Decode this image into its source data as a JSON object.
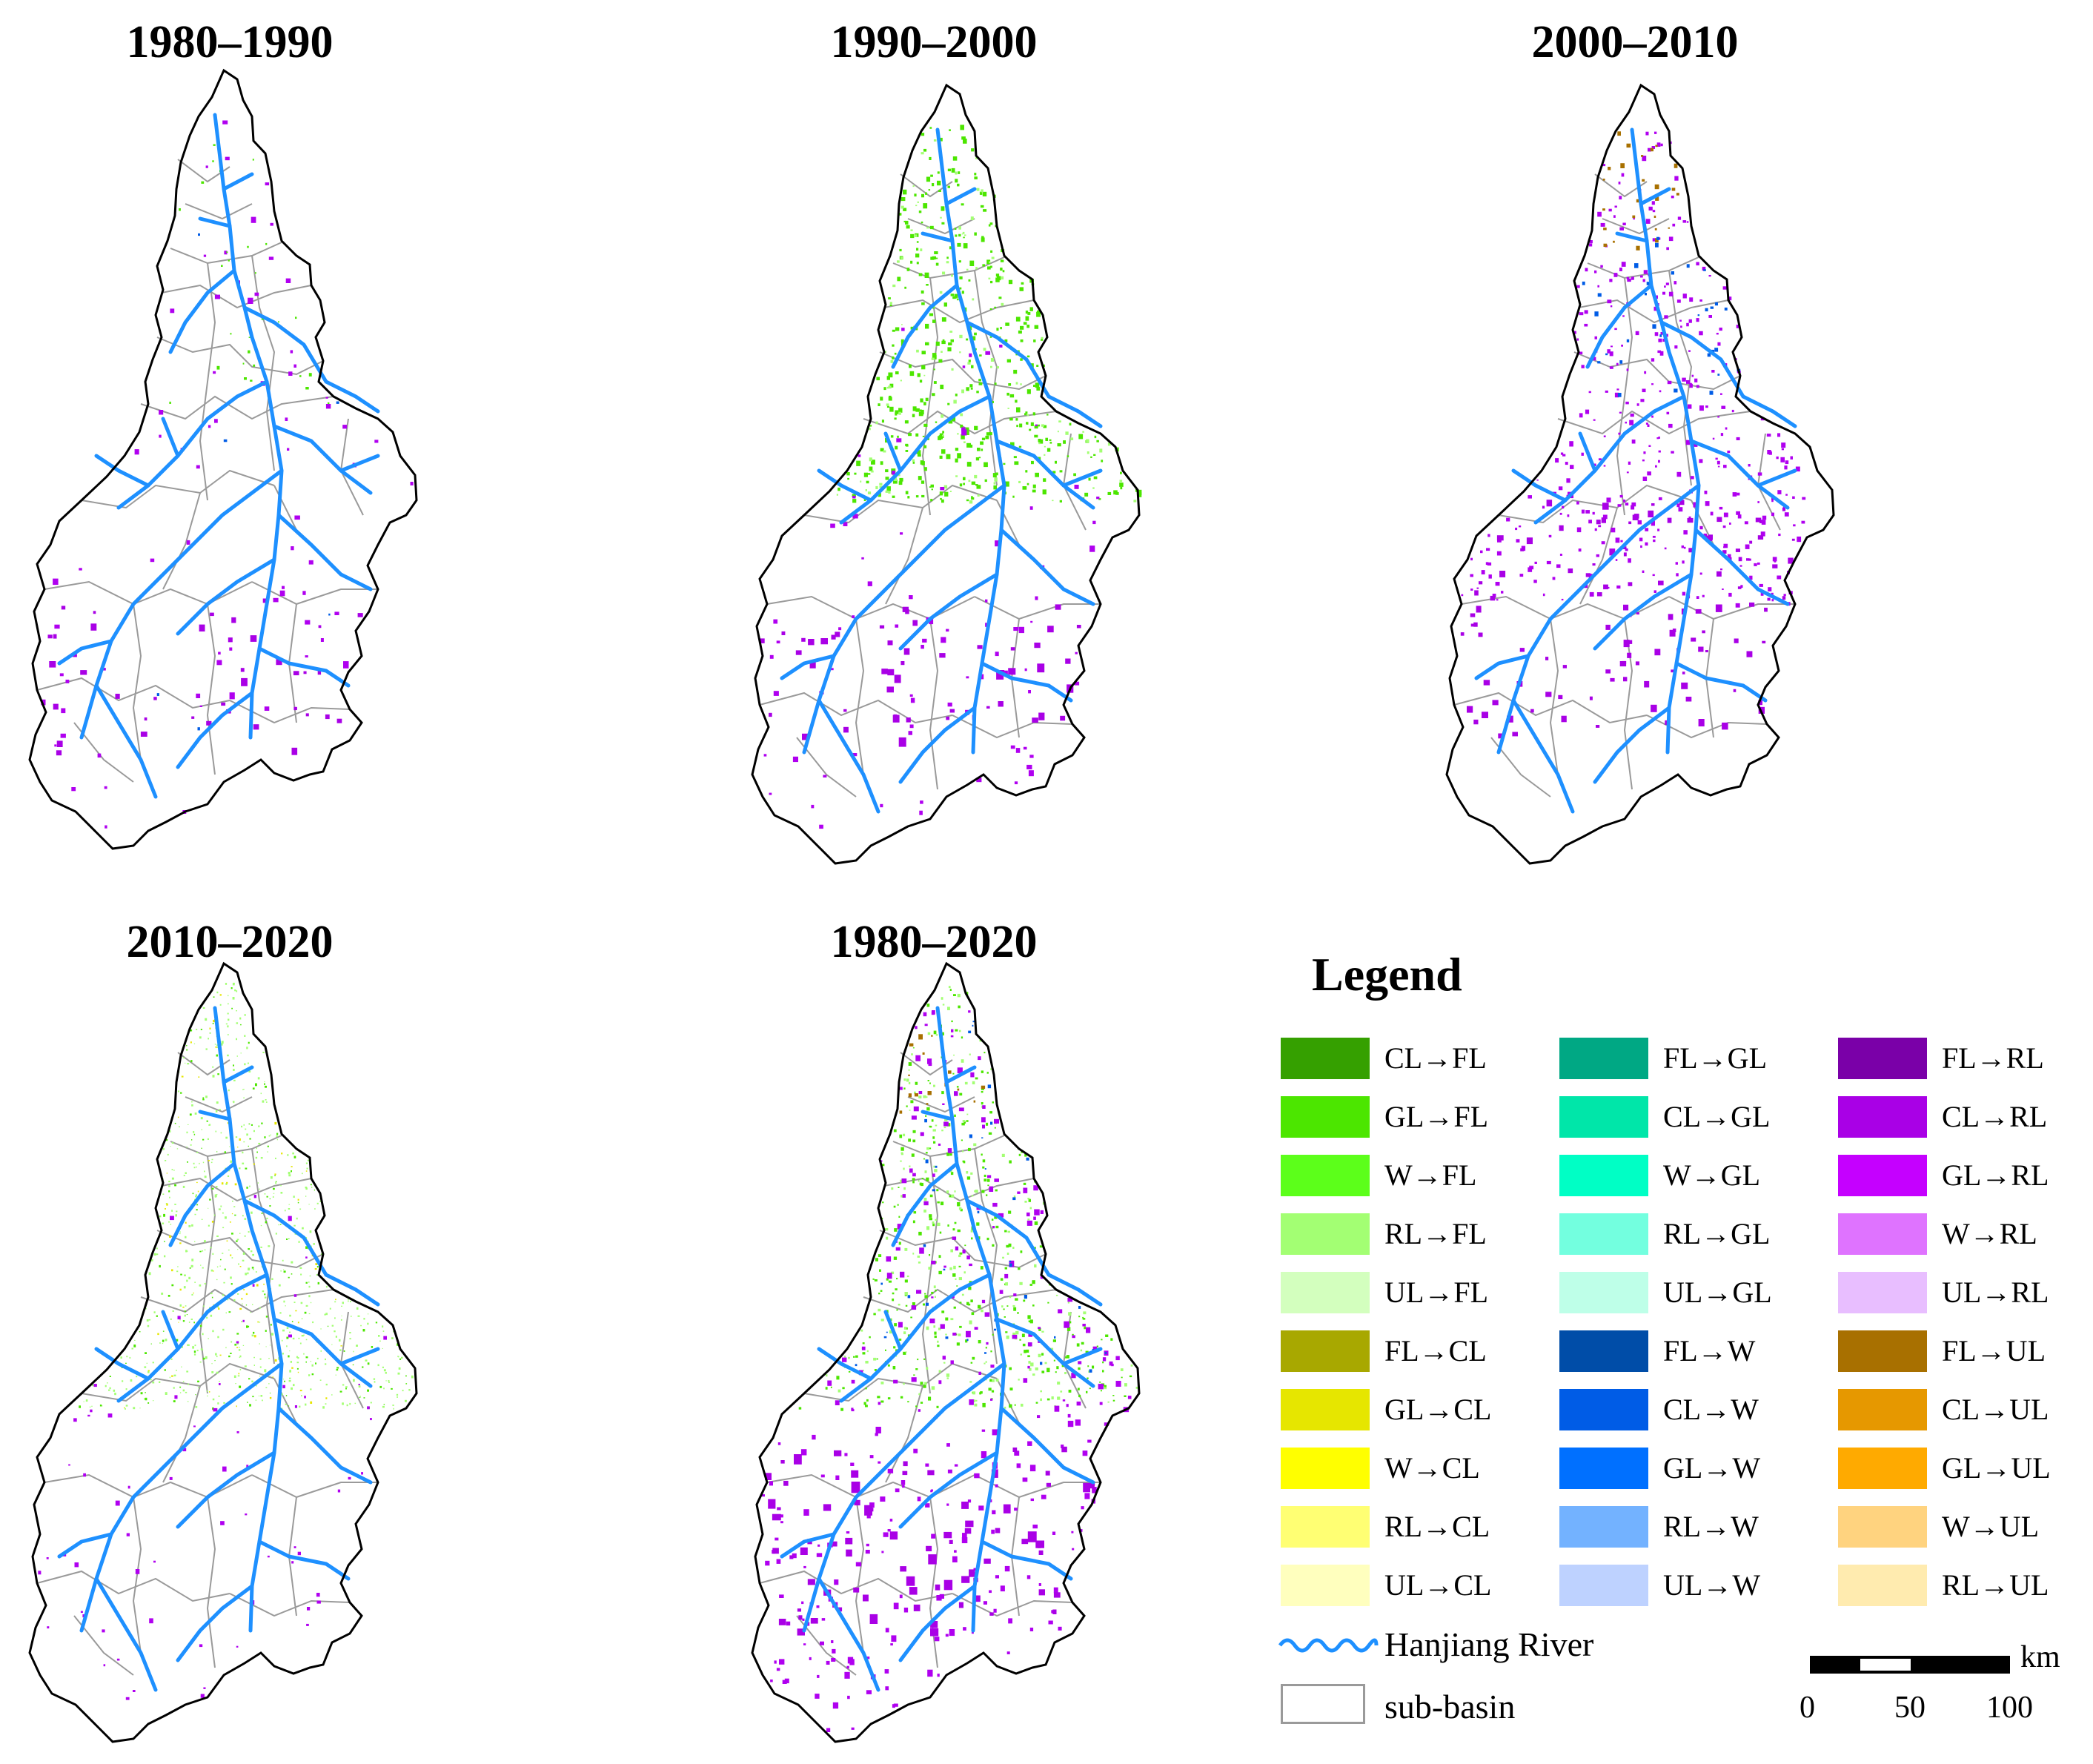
{
  "panels": [
    {
      "title": "1980–1990",
      "theme": "p1"
    },
    {
      "title": "1990–2000",
      "theme": "p2"
    },
    {
      "title": "2000–2010",
      "theme": "p3"
    },
    {
      "title": "2010–2020",
      "theme": "p4"
    },
    {
      "title": "1980–2020",
      "theme": "p5"
    }
  ],
  "legend": {
    "title": "Legend",
    "columns": [
      [
        {
          "label": "CL→FL",
          "color": "#35a000"
        },
        {
          "label": "GL→FL",
          "color": "#4ce600"
        },
        {
          "label": "W→FL",
          "color": "#5cff1a"
        },
        {
          "label": "RL→FL",
          "color": "#a3ff73"
        },
        {
          "label": "UL→FL",
          "color": "#d3ffbe"
        },
        {
          "label": "FL→CL",
          "color": "#a8a800"
        },
        {
          "label": "GL→CL",
          "color": "#e6e600"
        },
        {
          "label": "W→CL",
          "color": "#ffff00"
        },
        {
          "label": "RL→CL",
          "color": "#ffff73"
        },
        {
          "label": "UL→CL",
          "color": "#ffffbe"
        }
      ],
      [
        {
          "label": "FL→GL",
          "color": "#00a884"
        },
        {
          "label": "CL→GL",
          "color": "#00e6a9"
        },
        {
          "label": "W→GL",
          "color": "#00ffc5"
        },
        {
          "label": "RL→GL",
          "color": "#73ffdf"
        },
        {
          "label": "UL→GL",
          "color": "#beffe8"
        },
        {
          "label": "FL→W",
          "color": "#004da8"
        },
        {
          "label": "CL→W",
          "color": "#005ce6"
        },
        {
          "label": "GL→W",
          "color": "#0070ff"
        },
        {
          "label": "RL→W",
          "color": "#73b2ff"
        },
        {
          "label": "UL→W",
          "color": "#bed2ff"
        }
      ],
      [
        {
          "label": "FL→RL",
          "color": "#7a00a8"
        },
        {
          "label": "CL→RL",
          "color": "#a900e6"
        },
        {
          "label": "GL→RL",
          "color": "#c500ff"
        },
        {
          "label": "W→RL",
          "color": "#df73ff"
        },
        {
          "label": "UL→RL",
          "color": "#e8beff"
        },
        {
          "label": "FL→UL",
          "color": "#a87000"
        },
        {
          "label": "CL→UL",
          "color": "#e69800"
        },
        {
          "label": "GL→UL",
          "color": "#ffaa00"
        },
        {
          "label": "W→UL",
          "color": "#ffd37f"
        },
        {
          "label": "RL→UL",
          "color": "#ffebaf"
        }
      ]
    ],
    "river_label": "Hanjiang River",
    "river_color": "#1e90ff",
    "subbasin_label": "sub-basin",
    "subbasin_color": "#9a9a9a"
  },
  "scale": {
    "unit": "km",
    "ticks": [
      "0",
      "50",
      "100"
    ]
  },
  "colors": {
    "boundary": "#000000",
    "purple": "#b000f0",
    "green": "#4ce600",
    "lightgreen": "#a3ff73",
    "brown": "#a87000"
  }
}
